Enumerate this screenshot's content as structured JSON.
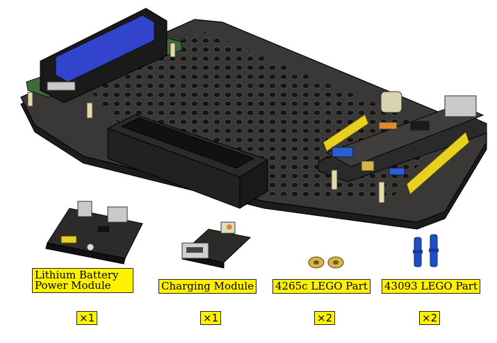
{
  "parts": [
    {
      "name_lines": [
        "Lithium Battery",
        "Power Module"
      ],
      "quantity": "×1"
    },
    {
      "name_lines": [
        "Charging Module"
      ],
      "quantity": "×1"
    },
    {
      "name_lines": [
        "4265c LEGO Part"
      ],
      "quantity": "×2"
    },
    {
      "name_lines": [
        "43093 LEGO Part"
      ],
      "quantity": "×2"
    }
  ],
  "colors": {
    "label_bg": "#fff200",
    "chassis": "#2d2b2a",
    "lcd_screen": "#3344cc",
    "pcb_green": "#3f6b3a",
    "header_yellow": "#e8d020",
    "lego_blue": "#1f4fc8"
  }
}
